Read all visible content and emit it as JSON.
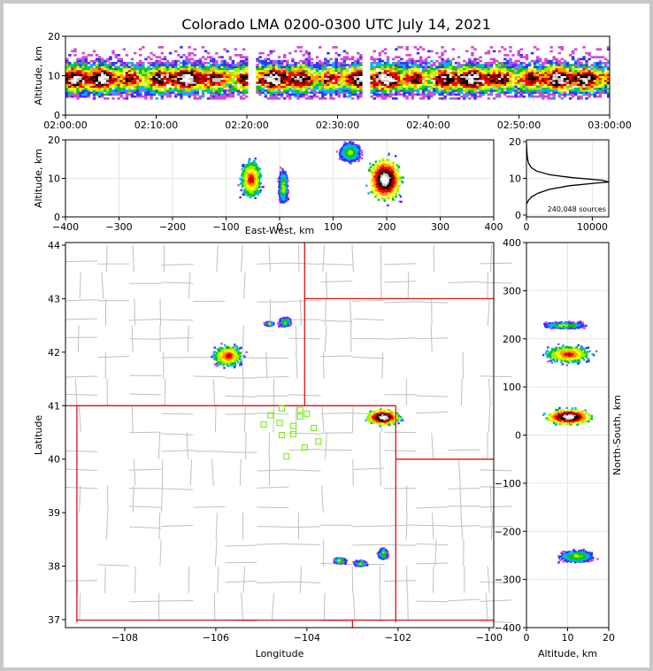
{
  "chart_data": {
    "title": "Colorado LMA 0200-0300 UTC July 14, 2021",
    "panels": [
      {
        "id": "time_altitude",
        "type": "heatmap",
        "xlabel": "",
        "ylabel": "Altitude, km",
        "x_ticks": [
          "02:00:00",
          "02:10:00",
          "02:20:00",
          "02:30:00",
          "02:40:00",
          "02:50:00",
          "03:00:00"
        ],
        "xlim": [
          "02:00:00",
          "03:00:00"
        ],
        "y_ticks": [
          0,
          10,
          20
        ],
        "ylim": [
          0,
          20
        ],
        "data_gaps_minutes": [
          [
            20.0,
            20.7
          ],
          [
            32.7,
            33.5
          ]
        ],
        "core_altitude_km": 9,
        "extent_altitude_km": [
          4,
          17
        ]
      },
      {
        "id": "eastwest_altitude",
        "type": "heatmap",
        "xlabel": "East-West, km",
        "ylabel": "Altitude, km",
        "x_ticks": [
          -400,
          -300,
          -200,
          -100,
          0,
          100,
          200,
          300,
          400
        ],
        "xlim": [
          -400,
          400
        ],
        "y_ticks": [
          0,
          10,
          20
        ],
        "ylim": [
          0,
          20
        ],
        "clusters": [
          {
            "x": [
              -90,
              -30
            ],
            "y": [
              4,
              19
            ],
            "center": [
              -55,
              10
            ],
            "intensity": "medium"
          },
          {
            "x": [
              -10,
              15
            ],
            "y": [
              4,
              18
            ],
            "center": [
              5,
              8
            ],
            "intensity": "low"
          },
          {
            "x": [
              100,
              160
            ],
            "y": [
              12,
              20
            ],
            "center": [
              130,
              17
            ],
            "intensity": "low"
          },
          {
            "x": [
              150,
              245
            ],
            "y": [
              3,
              20
            ],
            "center": [
              195,
              10
            ],
            "intensity": "high"
          }
        ]
      },
      {
        "id": "altitude_histogram",
        "type": "line",
        "xlabel": "",
        "ylabel": "",
        "x_ticks": [
          0,
          10000
        ],
        "xlim": [
          0,
          12500
        ],
        "y_ticks": [
          0,
          10,
          20
        ],
        "ylim": [
          0,
          20
        ],
        "annotation": "240,048 sources",
        "x": [
          0,
          300,
          800,
          1800,
          3500,
          6500,
          10500,
          12500,
          11500,
          7000,
          3500,
          1500,
          700,
          350,
          200,
          120,
          80,
          0
        ],
        "y": [
          3,
          4,
          5,
          6,
          7,
          8,
          8.7,
          9,
          9.5,
          10.2,
          11,
          12,
          13,
          14,
          15,
          16,
          17,
          19.5
        ]
      },
      {
        "id": "map",
        "type": "heatmap",
        "xlabel": "Longitude",
        "ylabel": "Latitude",
        "x_ticks": [
          -108,
          -106,
          -104,
          -102,
          -100
        ],
        "xlim": [
          -109.3,
          -99.9
        ],
        "y_ticks": [
          37,
          38,
          39,
          40,
          41,
          42,
          43,
          44
        ],
        "ylim": [
          36.85,
          44.05
        ],
        "clusters": [
          {
            "lon": [
              -106.2,
              -105.2
            ],
            "lat": [
              41.7,
              42.3
            ],
            "center": [
              -105.75,
              41.95
            ],
            "intensity": "medium"
          },
          {
            "lon": [
              -105.0,
              -104.7
            ],
            "lat": [
              42.5,
              42.6
            ],
            "center": [
              -104.85,
              42.55
            ],
            "intensity": "low"
          },
          {
            "lon": [
              -104.7,
              -104.3
            ],
            "lat": [
              42.45,
              42.7
            ],
            "center": [
              -104.5,
              42.58
            ],
            "intensity": "low"
          },
          {
            "lon": [
              -102.9,
              -101.8
            ],
            "lat": [
              40.5,
              40.95
            ],
            "center": [
              -102.35,
              40.8
            ],
            "intensity": "high"
          },
          {
            "lon": [
              -103.0,
              -102.6
            ],
            "lat": [
              38.0,
              38.15
            ],
            "center": [
              -102.85,
              38.07
            ],
            "intensity": "low"
          },
          {
            "lon": [
              -102.5,
              -102.2
            ],
            "lat": [
              38.1,
              38.4
            ],
            "center": [
              -102.35,
              38.25
            ],
            "intensity": "low"
          },
          {
            "lon": [
              -103.5,
              -103.1
            ],
            "lat": [
              38.05,
              38.2
            ],
            "center": [
              -103.3,
              38.12
            ],
            "intensity": "low"
          }
        ],
        "stations": [
          [
            -104.55,
            40.95
          ],
          [
            -104.15,
            40.92
          ],
          [
            -104.8,
            40.82
          ],
          [
            -104.0,
            40.85
          ],
          [
            -104.15,
            40.8
          ],
          [
            -104.95,
            40.65
          ],
          [
            -104.6,
            40.68
          ],
          [
            -104.3,
            40.62
          ],
          [
            -103.85,
            40.58
          ],
          [
            -104.55,
            40.45
          ],
          [
            -104.3,
            40.47
          ],
          [
            -103.75,
            40.33
          ],
          [
            -104.05,
            40.22
          ],
          [
            -104.45,
            40.05
          ]
        ],
        "state_borders": [
          {
            "points": [
              [
                -109.05,
                41.0
              ],
              [
                -102.05,
                41.0
              ]
            ]
          },
          {
            "points": [
              [
                -109.05,
                41.0
              ],
              [
                -109.05,
                36.95
              ]
            ]
          },
          {
            "points": [
              [
                -109.05,
                36.99
              ],
              [
                -99.9,
                36.99
              ]
            ]
          },
          {
            "points": [
              [
                -102.05,
                41.0
              ],
              [
                -102.05,
                36.95
              ]
            ]
          },
          {
            "points": [
              [
                -104.05,
                44.05
              ],
              [
                -104.05,
                41.0
              ]
            ]
          },
          {
            "points": [
              [
                -104.05,
                43.0
              ],
              [
                -99.9,
                43.0
              ]
            ]
          },
          {
            "points": [
              [
                -102.05,
                40.0
              ],
              [
                -99.9,
                40.0
              ]
            ]
          },
          {
            "points": [
              [
                -109.3,
                41.0
              ],
              [
                -109.05,
                41.0
              ]
            ]
          },
          {
            "points": [
              [
                -103.0,
                36.99
              ],
              [
                -103.0,
                36.85
              ]
            ]
          }
        ]
      },
      {
        "id": "altitude_northsouth",
        "type": "heatmap",
        "xlabel": "Altitude, km",
        "ylabel": "North-South, km",
        "x_ticks": [
          0,
          10,
          20
        ],
        "xlim": [
          0,
          20
        ],
        "y_ticks": [
          -400,
          -300,
          -200,
          -100,
          0,
          100,
          200,
          300,
          400
        ],
        "ylim": [
          -400,
          400
        ],
        "clusters": [
          {
            "x": [
              4,
              20
            ],
            "y": [
              220,
              240
            ],
            "center": [
              9,
              230
            ],
            "intensity": "low"
          },
          {
            "x": [
              3,
              20
            ],
            "y": [
              145,
              200
            ],
            "center": [
              10,
              170
            ],
            "intensity": "medium"
          },
          {
            "x": [
              3,
              20
            ],
            "y": [
              10,
              60
            ],
            "center": [
              10,
              40
            ],
            "intensity": "high"
          },
          {
            "x": [
              7,
              20
            ],
            "y": [
              -270,
              -230
            ],
            "center": [
              12,
              -250
            ],
            "intensity": "low"
          }
        ]
      }
    ]
  }
}
